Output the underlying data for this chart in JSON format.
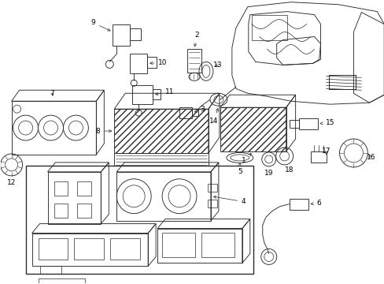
{
  "background_color": "#ffffff",
  "line_color": "#2a2a2a",
  "text_color": "#000000",
  "figure_width": 4.89,
  "figure_height": 3.6,
  "dpi": 100,
  "lw": 0.65,
  "fontsize": 6.5
}
